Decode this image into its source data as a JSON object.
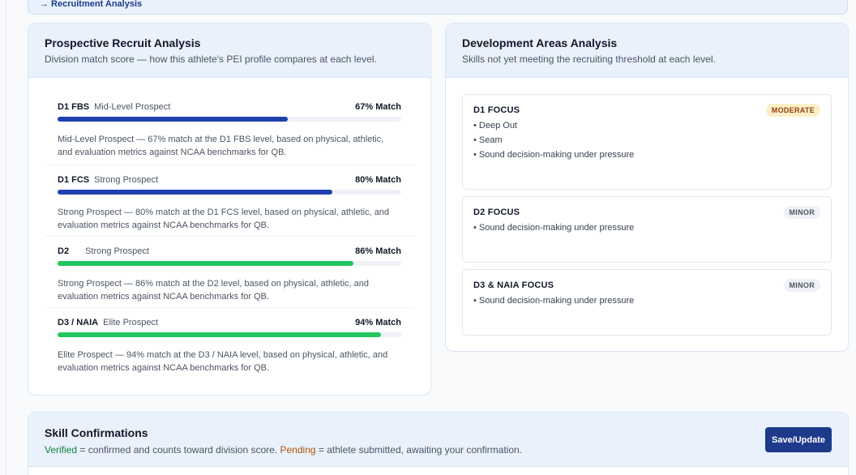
{
  "banner": {
    "link_label": "→ Recruitment Analysis"
  },
  "recruit": {
    "title": "Prospective Recruit Analysis",
    "subtitle": "Division match score — how this athlete's PEI profile compares at each level.",
    "levels": [
      {
        "name": "D1 FBS",
        "tier": "Mid-Level Prospect",
        "match": "67% Match",
        "percent": 67,
        "color": "#1e40af",
        "desc": "Mid-Level Prospect — 67% match at the D1 FBS level, based on physical, athletic, and evaluation metrics against NCAA benchmarks for QB."
      },
      {
        "name": "D1 FCS",
        "tier": "Strong Prospect",
        "match": "80% Match",
        "percent": 80,
        "color": "#1e40af",
        "desc": "Strong Prospect — 80% match at the D1 FCS level, based on physical, athletic, and evaluation metrics against NCAA benchmarks for QB."
      },
      {
        "name": "D2",
        "tier": "Strong Prospect",
        "match": "86% Match",
        "percent": 86,
        "color": "#22c55e",
        "desc": "Strong Prospect — 86% match at the D2 level, based on physical, athletic, and evaluation metrics against NCAA benchmarks for QB."
      },
      {
        "name": "D3 / NAIA",
        "tier": "Elite Prospect",
        "match": "94% Match",
        "percent": 94,
        "color": "#22c55e",
        "desc": "Elite Prospect — 94% match at the D3 / NAIA level, based on physical, athletic, and evaluation metrics against NCAA benchmarks for QB."
      }
    ]
  },
  "development": {
    "title": "Development Areas Analysis",
    "subtitle": "Skills not yet meeting the recruiting threshold at each level.",
    "focus": [
      {
        "title": "D1 FOCUS",
        "badge": "MODERATE",
        "items": [
          "• Deep Out",
          "• Seam",
          "• Sound decision-making under pressure"
        ]
      },
      {
        "title": "D2 FOCUS",
        "badge": "MINOR",
        "items": [
          "• Sound decision-making under pressure"
        ]
      },
      {
        "title": "D3 & NAIA FOCUS",
        "badge": "MINOR",
        "items": [
          "• Sound decision-making under pressure"
        ]
      }
    ]
  },
  "skills": {
    "title": "Skill Confirmations",
    "verified_word": "Verified",
    "verified_text": " = confirmed and counts toward division score. ",
    "pending_word": "Pending",
    "pending_text": " = athlete submitted, awaiting your confirmation.",
    "save_label": "Save/Update"
  }
}
